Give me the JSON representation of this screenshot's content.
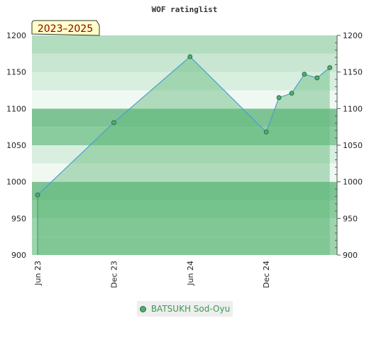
{
  "chart_data": {
    "type": "area",
    "title": "WOF ratinglist",
    "badge": "2023–2025",
    "ylim": [
      900,
      1200
    ],
    "yticks": [
      900,
      950,
      1000,
      1050,
      1100,
      1150,
      1200
    ],
    "xticks": [
      {
        "label": "Jun 23",
        "x": 0
      },
      {
        "label": "Dec 23",
        "x": 6
      },
      {
        "label": "Jun 24",
        "x": 12
      },
      {
        "label": "Dec 24",
        "x": 18
      }
    ],
    "series": [
      {
        "name": "BATSUKH Sod-Oyu",
        "points": [
          {
            "x": 0,
            "y": 982
          },
          {
            "x": 6,
            "y": 1081
          },
          {
            "x": 12,
            "y": 1171
          },
          {
            "x": 18,
            "y": 1068
          },
          {
            "x": 19,
            "y": 1115
          },
          {
            "x": 20,
            "y": 1121
          },
          {
            "x": 21,
            "y": 1147
          },
          {
            "x": 22,
            "y": 1142
          },
          {
            "x": 23,
            "y": 1156
          }
        ]
      }
    ],
    "colors": {
      "area": "#5fb87a",
      "line": "#4a9fd0",
      "marker": "#4caf6e"
    }
  }
}
